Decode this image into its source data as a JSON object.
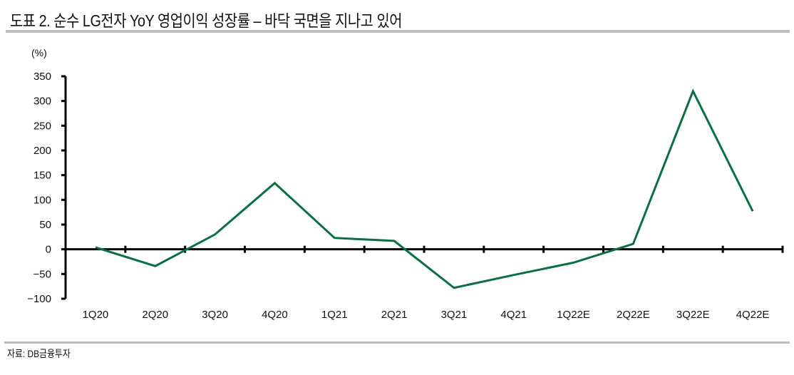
{
  "figure": {
    "title": "도표 2. 순수 LG전자 YoY 영업이익 성장률 – 바닥 국면을 지나고 있어",
    "unit_label": "(%)",
    "source": "자료: DB금융투자"
  },
  "colors": {
    "line": "#0a7042",
    "axis": "#000000",
    "rule": "#bdbdbd"
  },
  "chart_data": {
    "type": "line",
    "title": "도표 2. 순수 LG전자 YoY 영업이익 성장률 – 바닥 국면을 지나고 있어",
    "xlabel": "",
    "ylabel": "(%)",
    "ylim": [
      -100,
      350
    ],
    "yticks": [
      350,
      300,
      250,
      200,
      150,
      100,
      50,
      0,
      -50,
      -100
    ],
    "ytick_labels": [
      "350",
      "300",
      "250",
      "200",
      "150",
      "100",
      "50",
      "0",
      "−50",
      "−100"
    ],
    "grid": false,
    "legend": null,
    "categories": [
      "1Q20",
      "2Q20",
      "3Q20",
      "4Q20",
      "1Q21",
      "2Q21",
      "3Q21",
      "4Q21",
      "1Q22E",
      "2Q22E",
      "3Q22E",
      "4Q22E"
    ],
    "series": [
      {
        "name": "순수 LG전자 YoY 영업이익 성장률",
        "values": [
          4,
          -34,
          30,
          134,
          23,
          17,
          -78,
          -52,
          -27,
          11,
          320,
          77
        ]
      }
    ],
    "source": "자료: DB금융투자"
  }
}
